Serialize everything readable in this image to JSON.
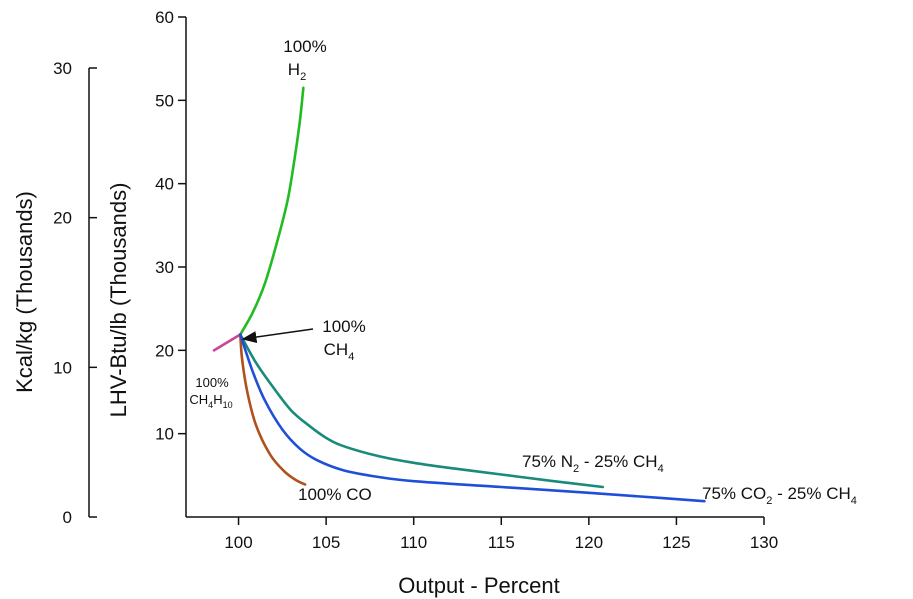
{
  "chart_data": {
    "type": "line",
    "xlabel": "Output - Percent",
    "ylabel": "LHV-Btu/lb (Thousands)",
    "ylabel_secondary": "Kcal/kg (Thousands)",
    "xlim": [
      97,
      130
    ],
    "ylim": [
      0,
      60
    ],
    "ylim_secondary": [
      0,
      30
    ],
    "x_ticks": [
      "100",
      "105",
      "110",
      "115",
      "120",
      "125",
      "130"
    ],
    "y_ticks": [
      "10",
      "20",
      "30",
      "40",
      "50",
      "60"
    ],
    "y_ticks_secondary": [
      "0",
      "10",
      "20",
      "30"
    ],
    "grid": false,
    "series": [
      {
        "name": "100% H2",
        "color": "#22bb22",
        "x": [
          100.1,
          100.8,
          101.5,
          102.2,
          102.8,
          103.2,
          103.5,
          103.7
        ],
        "y": [
          21.9,
          24.5,
          28,
          33,
          38,
          43,
          47.5,
          51.5
        ]
      },
      {
        "name": "100% CH4H10",
        "color": "#cc4499",
        "x": [
          98.6,
          100.1
        ],
        "y": [
          20,
          21.9
        ]
      },
      {
        "name": "100% CO",
        "color": "#b0501a",
        "x": [
          100.1,
          100.2,
          100.5,
          101,
          101.8,
          102.6,
          103.3,
          103.8
        ],
        "y": [
          21.9,
          19,
          15,
          11,
          7.5,
          5.5,
          4.4,
          3.9
        ]
      },
      {
        "name": "75% N2 - 25% CH4",
        "color": "#1a8a7a",
        "x": [
          100.1,
          101,
          102,
          103,
          104,
          105,
          106,
          108,
          110,
          112,
          115,
          118,
          120.8
        ],
        "y": [
          21.9,
          18.5,
          15.5,
          12.8,
          11,
          9.5,
          8.5,
          7.3,
          6.5,
          5.9,
          5.1,
          4.3,
          3.6
        ]
      },
      {
        "name": "75% CO2 - 25% CH4",
        "color": "#1f4fd8",
        "x": [
          100.1,
          100.8,
          101.5,
          102.5,
          103.5,
          104.5,
          106,
          108,
          110,
          115,
          120,
          124,
          126.6
        ],
        "y": [
          21.9,
          17.5,
          14,
          10.5,
          8.2,
          6.8,
          5.6,
          4.8,
          4.3,
          3.6,
          2.9,
          2.3,
          1.9
        ]
      }
    ],
    "annotations": [
      {
        "id": "h2",
        "line1": "100%",
        "line2": "H",
        "sub": "2"
      },
      {
        "id": "ch4",
        "line1": "100%",
        "line2": "CH",
        "sub": "4"
      },
      {
        "id": "ch4h10",
        "line1": "100%",
        "line2": "CH",
        "sub": "4",
        "line2b": "H",
        "sub2": "10"
      },
      {
        "id": "co",
        "text": "100% CO"
      },
      {
        "id": "n2",
        "a": "75% N",
        "sub": "2",
        "b": " - 25% CH",
        "sub2": "4"
      },
      {
        "id": "co2",
        "a": "75% CO",
        "sub": "2",
        "b": " - 25% CH",
        "sub2": "4"
      }
    ]
  }
}
